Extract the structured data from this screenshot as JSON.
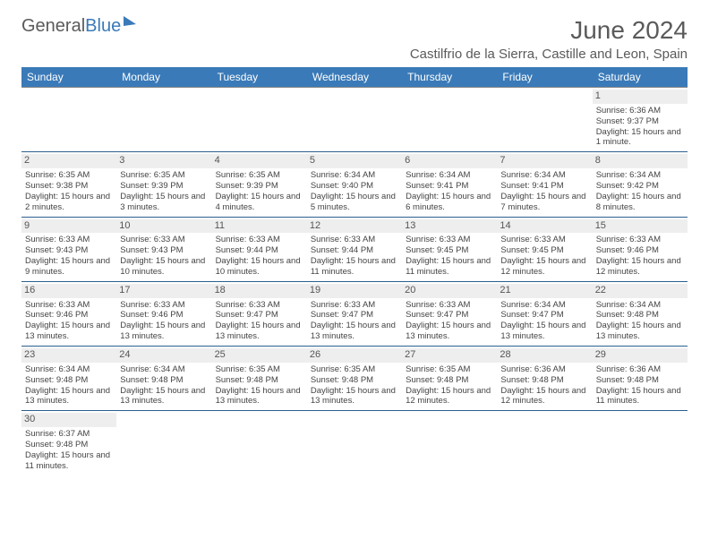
{
  "brand": {
    "part1": "General",
    "part2": "Blue"
  },
  "title": "June 2024",
  "location": "Castilfrio de la Sierra, Castille and Leon, Spain",
  "colors": {
    "header_bg": "#3a7ab8",
    "header_text": "#ffffff",
    "daynum_bg": "#eeeeee",
    "border": "#2c5f8f",
    "title_color": "#5a5a5a"
  },
  "days": [
    "Sunday",
    "Monday",
    "Tuesday",
    "Wednesday",
    "Thursday",
    "Friday",
    "Saturday"
  ],
  "weeks": [
    [
      null,
      null,
      null,
      null,
      null,
      null,
      {
        "n": "1",
        "sr": "6:36 AM",
        "ss": "9:37 PM",
        "dl": "15 hours and 1 minute."
      }
    ],
    [
      {
        "n": "2",
        "sr": "6:35 AM",
        "ss": "9:38 PM",
        "dl": "15 hours and 2 minutes."
      },
      {
        "n": "3",
        "sr": "6:35 AM",
        "ss": "9:39 PM",
        "dl": "15 hours and 3 minutes."
      },
      {
        "n": "4",
        "sr": "6:35 AM",
        "ss": "9:39 PM",
        "dl": "15 hours and 4 minutes."
      },
      {
        "n": "5",
        "sr": "6:34 AM",
        "ss": "9:40 PM",
        "dl": "15 hours and 5 minutes."
      },
      {
        "n": "6",
        "sr": "6:34 AM",
        "ss": "9:41 PM",
        "dl": "15 hours and 6 minutes."
      },
      {
        "n": "7",
        "sr": "6:34 AM",
        "ss": "9:41 PM",
        "dl": "15 hours and 7 minutes."
      },
      {
        "n": "8",
        "sr": "6:34 AM",
        "ss": "9:42 PM",
        "dl": "15 hours and 8 minutes."
      }
    ],
    [
      {
        "n": "9",
        "sr": "6:33 AM",
        "ss": "9:43 PM",
        "dl": "15 hours and 9 minutes."
      },
      {
        "n": "10",
        "sr": "6:33 AM",
        "ss": "9:43 PM",
        "dl": "15 hours and 10 minutes."
      },
      {
        "n": "11",
        "sr": "6:33 AM",
        "ss": "9:44 PM",
        "dl": "15 hours and 10 minutes."
      },
      {
        "n": "12",
        "sr": "6:33 AM",
        "ss": "9:44 PM",
        "dl": "15 hours and 11 minutes."
      },
      {
        "n": "13",
        "sr": "6:33 AM",
        "ss": "9:45 PM",
        "dl": "15 hours and 11 minutes."
      },
      {
        "n": "14",
        "sr": "6:33 AM",
        "ss": "9:45 PM",
        "dl": "15 hours and 12 minutes."
      },
      {
        "n": "15",
        "sr": "6:33 AM",
        "ss": "9:46 PM",
        "dl": "15 hours and 12 minutes."
      }
    ],
    [
      {
        "n": "16",
        "sr": "6:33 AM",
        "ss": "9:46 PM",
        "dl": "15 hours and 13 minutes."
      },
      {
        "n": "17",
        "sr": "6:33 AM",
        "ss": "9:46 PM",
        "dl": "15 hours and 13 minutes."
      },
      {
        "n": "18",
        "sr": "6:33 AM",
        "ss": "9:47 PM",
        "dl": "15 hours and 13 minutes."
      },
      {
        "n": "19",
        "sr": "6:33 AM",
        "ss": "9:47 PM",
        "dl": "15 hours and 13 minutes."
      },
      {
        "n": "20",
        "sr": "6:33 AM",
        "ss": "9:47 PM",
        "dl": "15 hours and 13 minutes."
      },
      {
        "n": "21",
        "sr": "6:34 AM",
        "ss": "9:47 PM",
        "dl": "15 hours and 13 minutes."
      },
      {
        "n": "22",
        "sr": "6:34 AM",
        "ss": "9:48 PM",
        "dl": "15 hours and 13 minutes."
      }
    ],
    [
      {
        "n": "23",
        "sr": "6:34 AM",
        "ss": "9:48 PM",
        "dl": "15 hours and 13 minutes."
      },
      {
        "n": "24",
        "sr": "6:34 AM",
        "ss": "9:48 PM",
        "dl": "15 hours and 13 minutes."
      },
      {
        "n": "25",
        "sr": "6:35 AM",
        "ss": "9:48 PM",
        "dl": "15 hours and 13 minutes."
      },
      {
        "n": "26",
        "sr": "6:35 AM",
        "ss": "9:48 PM",
        "dl": "15 hours and 13 minutes."
      },
      {
        "n": "27",
        "sr": "6:35 AM",
        "ss": "9:48 PM",
        "dl": "15 hours and 12 minutes."
      },
      {
        "n": "28",
        "sr": "6:36 AM",
        "ss": "9:48 PM",
        "dl": "15 hours and 12 minutes."
      },
      {
        "n": "29",
        "sr": "6:36 AM",
        "ss": "9:48 PM",
        "dl": "15 hours and 11 minutes."
      }
    ],
    [
      {
        "n": "30",
        "sr": "6:37 AM",
        "ss": "9:48 PM",
        "dl": "15 hours and 11 minutes."
      },
      null,
      null,
      null,
      null,
      null,
      null
    ]
  ],
  "labels": {
    "sunrise": "Sunrise: ",
    "sunset": "Sunset: ",
    "daylight": "Daylight: "
  }
}
